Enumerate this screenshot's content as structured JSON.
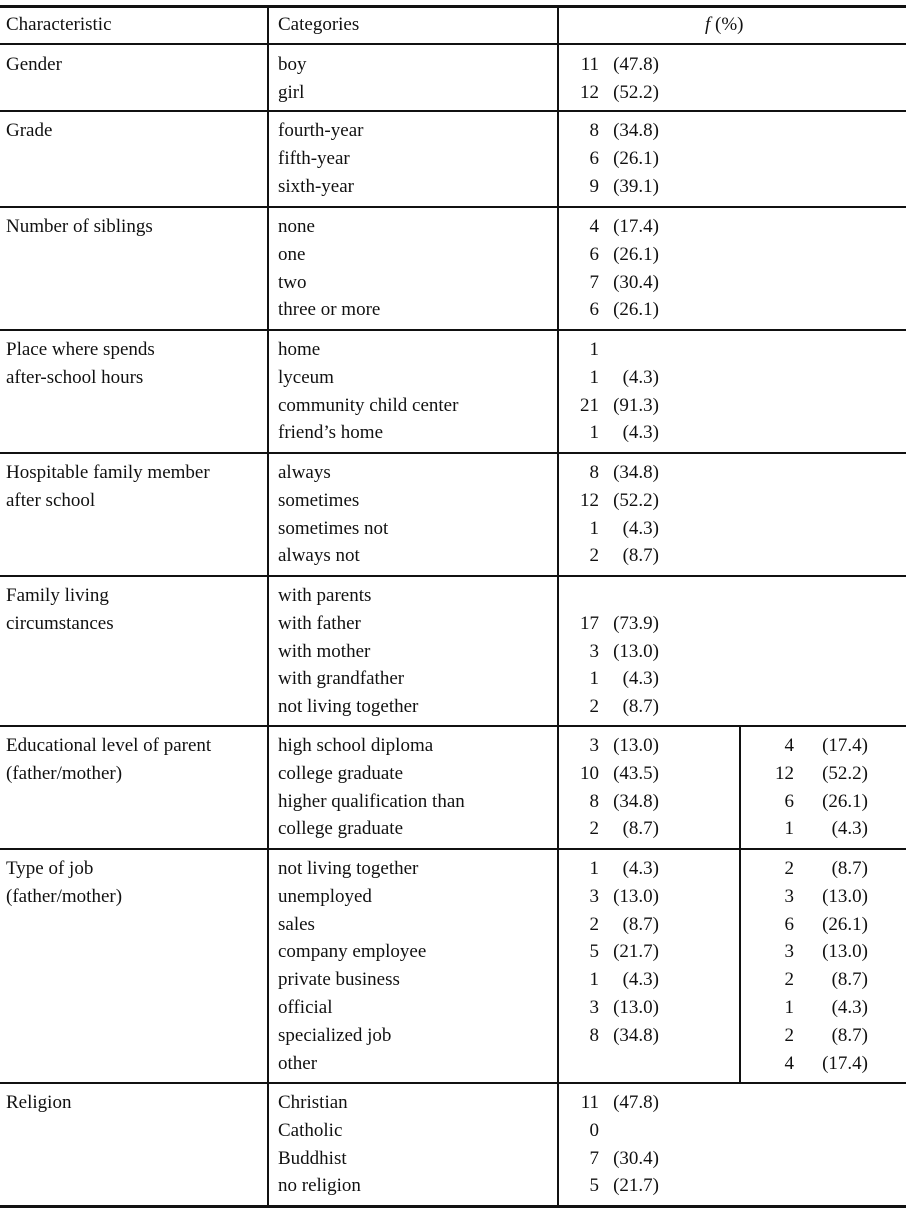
{
  "table": {
    "headers": {
      "characteristic": "Characteristic",
      "categories": "Categories",
      "f_prefix": "f",
      "f_suffix": " (%)"
    },
    "sections": [
      {
        "characteristic": [
          "Gender"
        ],
        "rows": [
          {
            "category": "boy",
            "n": "11",
            "pct": "(47.8)"
          },
          {
            "category": "girl",
            "n": "12",
            "pct": "(52.2)"
          }
        ]
      },
      {
        "characteristic": [
          "Grade"
        ],
        "rows": [
          {
            "category": "fourth-year",
            "n": "8",
            "pct": "(34.8)"
          },
          {
            "category": "fifth-year",
            "n": "6",
            "pct": "(26.1)"
          },
          {
            "category": "sixth-year",
            "n": "9",
            "pct": "(39.1)"
          }
        ]
      },
      {
        "characteristic": [
          "Number of siblings"
        ],
        "rows": [
          {
            "category": "none",
            "n": "4",
            "pct": "(17.4)"
          },
          {
            "category": "one",
            "n": "6",
            "pct": "(26.1)"
          },
          {
            "category": "two",
            "n": "7",
            "pct": "(30.4)"
          },
          {
            "category": "three or more",
            "n": "6",
            "pct": "(26.1)"
          }
        ]
      },
      {
        "characteristic": [
          "Place where spends",
          "after-school hours"
        ],
        "rows": [
          {
            "category": "home",
            "n": "1",
            "pct": ""
          },
          {
            "category": "lyceum",
            "n": "1",
            "pct": "(4.3)"
          },
          {
            "category": "community child center",
            "n": "21",
            "pct": "(91.3)"
          },
          {
            "category": "friend’s home",
            "n": "1",
            "pct": "(4.3)"
          }
        ]
      },
      {
        "characteristic": [
          "Hospitable family member",
          "after school"
        ],
        "rows": [
          {
            "category": "always",
            "n": "8",
            "pct": "(34.8)"
          },
          {
            "category": "sometimes",
            "n": "12",
            "pct": "(52.2)"
          },
          {
            "category": "sometimes not",
            "n": "1",
            "pct": "(4.3)"
          },
          {
            "category": "always not",
            "n": "2",
            "pct": "(8.7)"
          }
        ]
      },
      {
        "characteristic": [
          "Family living",
          "circumstances"
        ],
        "rows": [
          {
            "category": "with parents",
            "n": "",
            "pct": ""
          },
          {
            "category": "with father",
            "n": "17",
            "pct": "(73.9)"
          },
          {
            "category": "with mother",
            "n": "3",
            "pct": "(13.0)"
          },
          {
            "category": "with grandfather",
            "n": "1",
            "pct": "(4.3)"
          },
          {
            "category": "not living together",
            "n": "2",
            "pct": "(8.7)"
          }
        ]
      },
      {
        "characteristic": [
          "Educational level of parent",
          "(father/mother)"
        ],
        "split": true,
        "rows": [
          {
            "category": "high school diploma",
            "n": "3",
            "pct": "(13.0)",
            "n2": "4",
            "pct2": "(17.4)"
          },
          {
            "category": "college graduate",
            "n": "10",
            "pct": "(43.5)",
            "n2": "12",
            "pct2": "(52.2)"
          },
          {
            "category": "higher qualification than",
            "n": "8",
            "pct": "(34.8)",
            "n2": "6",
            "pct2": "(26.1)"
          },
          {
            "category": "college graduate",
            "n": "2",
            "pct": "(8.7)",
            "n2": "1",
            "pct2": "(4.3)"
          }
        ]
      },
      {
        "characteristic": [
          "Type of job",
          "(father/mother)"
        ],
        "split": true,
        "rows": [
          {
            "category": "not living together",
            "n": "1",
            "pct": "(4.3)",
            "n2": "2",
            "pct2": "(8.7)"
          },
          {
            "category": "unemployed",
            "n": "3",
            "pct": "(13.0)",
            "n2": "3",
            "pct2": "(13.0)"
          },
          {
            "category": "sales",
            "n": "2",
            "pct": "(8.7)",
            "n2": "6",
            "pct2": "(26.1)"
          },
          {
            "category": "company employee",
            "n": "5",
            "pct": "(21.7)",
            "n2": "3",
            "pct2": "(13.0)"
          },
          {
            "category": "private business",
            "n": "1",
            "pct": "(4.3)",
            "n2": "2",
            "pct2": "(8.7)"
          },
          {
            "category": "official",
            "n": "3",
            "pct": "(13.0)",
            "n2": "1",
            "pct2": "(4.3)"
          },
          {
            "category": "specialized job",
            "n": "8",
            "pct": "(34.8)",
            "n2": "2",
            "pct2": "(8.7)"
          },
          {
            "category": "other",
            "n": "",
            "pct": "",
            "n2": "4",
            "pct2": "(17.4)"
          }
        ]
      },
      {
        "characteristic": [
          "Religion"
        ],
        "rows": [
          {
            "category": "Christian",
            "n": "11",
            "pct": "(47.8)"
          },
          {
            "category": "Catholic",
            "n": "0",
            "pct": ""
          },
          {
            "category": "Buddhist",
            "n": "7",
            "pct": "(30.4)"
          },
          {
            "category": "no religion",
            "n": "5",
            "pct": "(21.7)"
          }
        ]
      }
    ]
  }
}
